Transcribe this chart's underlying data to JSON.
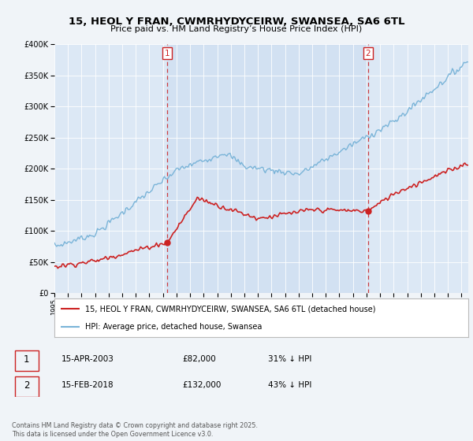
{
  "title": "15, HEOL Y FRAN, CWMRHYDYCEIRW, SWANSEA, SA6 6TL",
  "subtitle": "Price paid vs. HM Land Registry’s House Price Index (HPI)",
  "red_label": "15, HEOL Y FRAN, CWMRHYDYCEIRW, SWANSEA, SA6 6TL (detached house)",
  "blue_label": "HPI: Average price, detached house, Swansea",
  "sale1_date": "15-APR-2003",
  "sale1_price": 82000,
  "sale1_pct": "31% ↓ HPI",
  "sale2_date": "15-FEB-2018",
  "sale2_price": 132000,
  "sale2_pct": "43% ↓ HPI",
  "footer": "Contains HM Land Registry data © Crown copyright and database right 2025.\nThis data is licensed under the Open Government Licence v3.0.",
  "ylim": [
    0,
    400000
  ],
  "xlim": [
    1995,
    2025.5
  ],
  "yticks": [
    0,
    50000,
    100000,
    150000,
    200000,
    250000,
    300000,
    350000,
    400000
  ],
  "background_color": "#f0f4f8",
  "plot_bg": "#dce8f5",
  "shade_color": "#ccddf0",
  "sale1_year": 2003.29,
  "sale2_year": 2018.12
}
